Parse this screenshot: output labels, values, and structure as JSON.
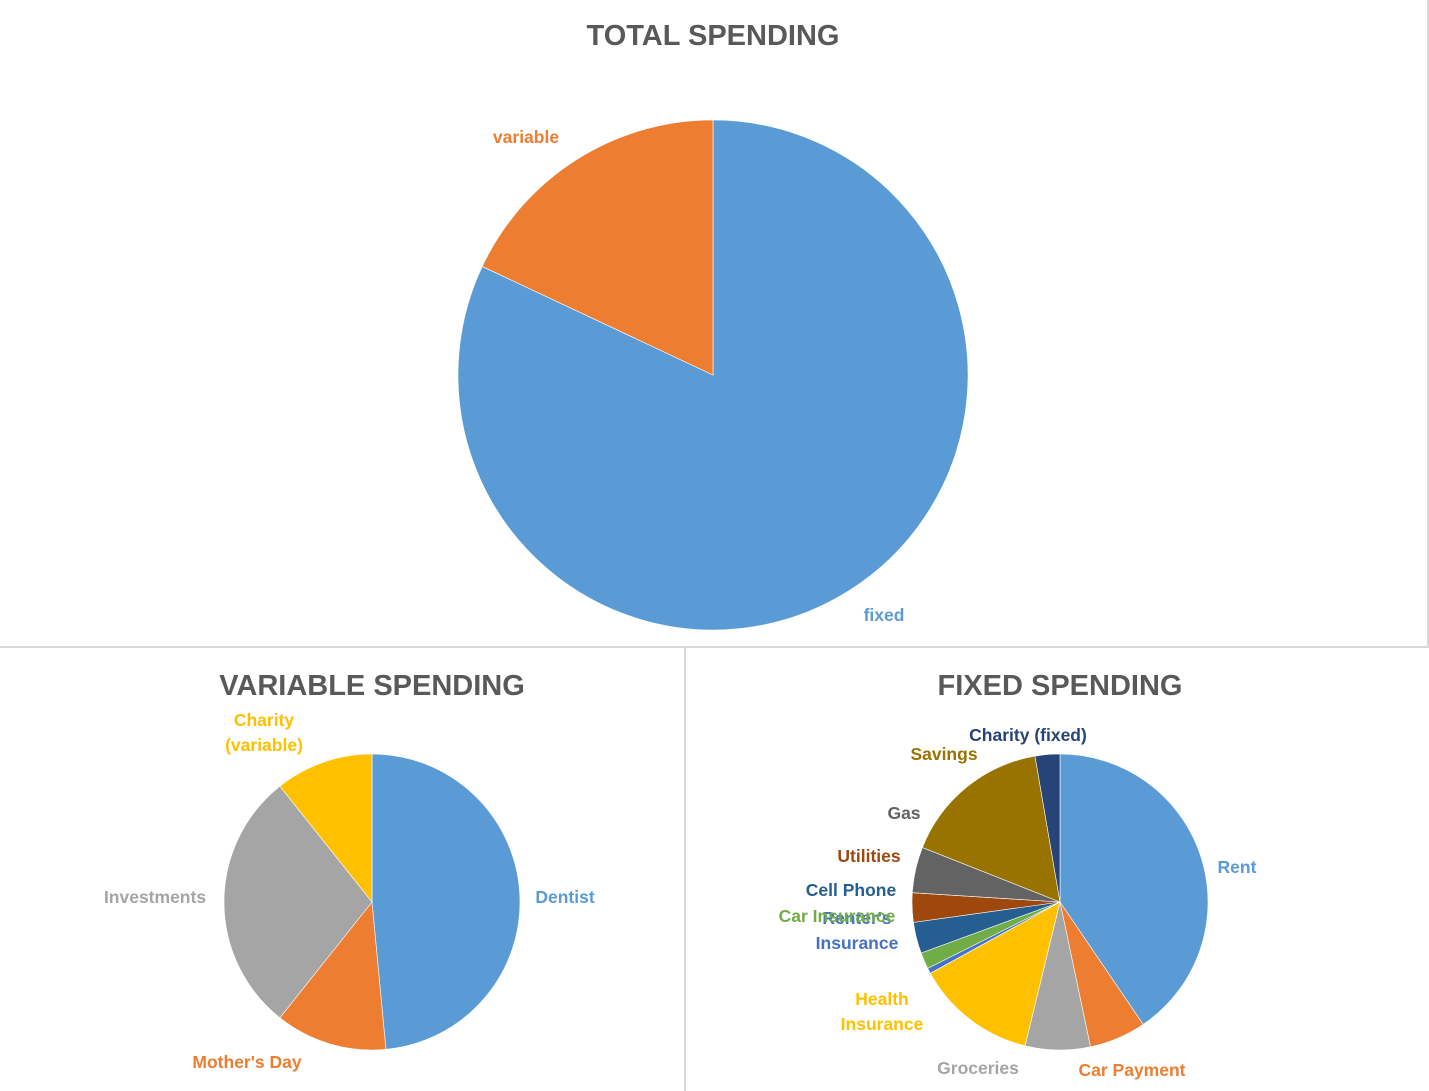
{
  "colors": {
    "background": "#ffffff",
    "border": "#d9d9d9",
    "title": "#595959"
  },
  "chart_data": [
    {
      "type": "pie",
      "title": "TOTAL SPENDING",
      "legend": "none",
      "start_angle_deg": 0,
      "direction": "clockwise",
      "slices": [
        {
          "label": "fixed",
          "value": 82,
          "color": "#5b9bd5"
        },
        {
          "label": "variable",
          "value": 18,
          "color": "#ed7d31"
        }
      ]
    },
    {
      "type": "pie",
      "title": "VARIABLE SPENDING",
      "legend": "none",
      "start_angle_deg": 0,
      "direction": "clockwise",
      "slices": [
        {
          "label": "Dentist",
          "value": 48.5,
          "color": "#5b9bd5"
        },
        {
          "label": "Mother's Day",
          "value": 12.2,
          "color": "#ed7d31"
        },
        {
          "label": "Investments",
          "value": 28.6,
          "color": "#a5a5a5"
        },
        {
          "label": "Charity (variable)",
          "value": 10.7,
          "color": "#ffc000"
        }
      ]
    },
    {
      "type": "pie",
      "title": "FIXED SPENDING",
      "legend": "none",
      "start_angle_deg": 0,
      "direction": "clockwise",
      "slices": [
        {
          "label": "Rent",
          "value": 40.5,
          "color": "#5b9bd5"
        },
        {
          "label": "Car Payment",
          "value": 6.2,
          "color": "#ed7d31"
        },
        {
          "label": "Groceries",
          "value": 7.1,
          "color": "#a5a5a5"
        },
        {
          "label": "Health Insurance",
          "value": 13.2,
          "color": "#ffc000"
        },
        {
          "label": "Renter's Insurance",
          "value": 0.6,
          "color": "#4472c4"
        },
        {
          "label": "Car Insurance",
          "value": 1.8,
          "color": "#70ad47"
        },
        {
          "label": "Cell Phone",
          "value": 3.4,
          "color": "#255e91"
        },
        {
          "label": "Utilities",
          "value": 3.2,
          "color": "#9e480e"
        },
        {
          "label": "Gas",
          "value": 5.0,
          "color": "#636363"
        },
        {
          "label": "Savings",
          "value": 16.3,
          "color": "#997300"
        },
        {
          "label": "Charity (fixed)",
          "value": 2.7,
          "color": "#264478"
        }
      ]
    }
  ]
}
